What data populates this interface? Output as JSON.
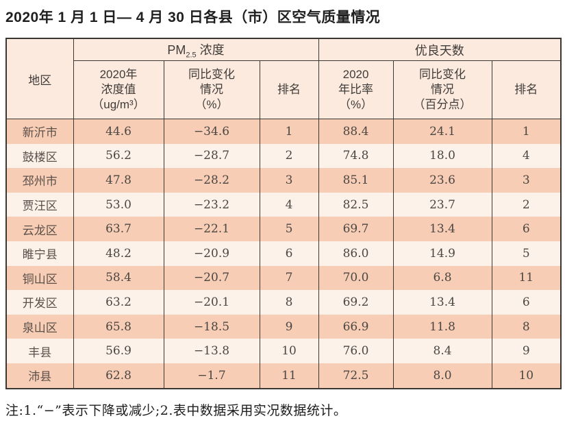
{
  "title": "2020年 1 月 1 日— 4 月 30 日各县（市）区空气质量情况",
  "table": {
    "header": {
      "region": "地区",
      "pm25_group": {
        "prefix": "PM",
        "sub": "2.5",
        "suffix": " 浓度"
      },
      "good_days_group": "优良天数",
      "sub_headers": {
        "pm25_value": "2020年\n浓度值\n（ug/m³）",
        "pm25_change": "同比变化\n情况\n（%）",
        "pm25_rank": "排名",
        "ratio_value": "2020\n年比率\n（%）",
        "ratio_change": "同比变化\n情况\n（百分点）",
        "ratio_rank": "排名"
      }
    },
    "rows": [
      {
        "region": "新沂市",
        "values": [
          "44.6",
          "−34.6",
          "1",
          "88.4",
          "24.1",
          "1"
        ]
      },
      {
        "region": "鼓楼区",
        "values": [
          "56.2",
          "−28.7",
          "2",
          "74.8",
          "18.0",
          "4"
        ]
      },
      {
        "region": "邳州市",
        "values": [
          "47.8",
          "−28.2",
          "3",
          "85.1",
          "23.6",
          "3"
        ]
      },
      {
        "region": "贾汪区",
        "values": [
          "53.0",
          "−23.2",
          "4",
          "82.5",
          "23.7",
          "2"
        ]
      },
      {
        "region": "云龙区",
        "values": [
          "63.7",
          "−22.1",
          "5",
          "69.7",
          "13.4",
          "6"
        ]
      },
      {
        "region": "睢宁县",
        "values": [
          "48.2",
          "−20.9",
          "6",
          "86.0",
          "14.9",
          "5"
        ]
      },
      {
        "region": "铜山区",
        "values": [
          "58.4",
          "−20.7",
          "7",
          "70.0",
          "6.8",
          "11"
        ]
      },
      {
        "region": "开发区",
        "values": [
          "63.2",
          "−20.1",
          "8",
          "69.2",
          "13.4",
          "6"
        ]
      },
      {
        "region": "泉山区",
        "values": [
          "65.8",
          "−18.5",
          "9",
          "66.9",
          "11.8",
          "8"
        ]
      },
      {
        "region": "丰县",
        "values": [
          "56.9",
          "−13.8",
          "10",
          "76.0",
          "8.4",
          "9"
        ]
      },
      {
        "region": "沛县",
        "values": [
          "62.8",
          "−1.7",
          "11",
          "72.5",
          "8.0",
          "10"
        ]
      }
    ]
  },
  "note": "注:1.“−”表示下降或减少;2.表中数据采用实况数据统计。",
  "colors": {
    "row_dark": "#f8cdb5",
    "row_light": "#fdf2ea",
    "header_bg": "#fceade",
    "border": "#3a3733"
  }
}
